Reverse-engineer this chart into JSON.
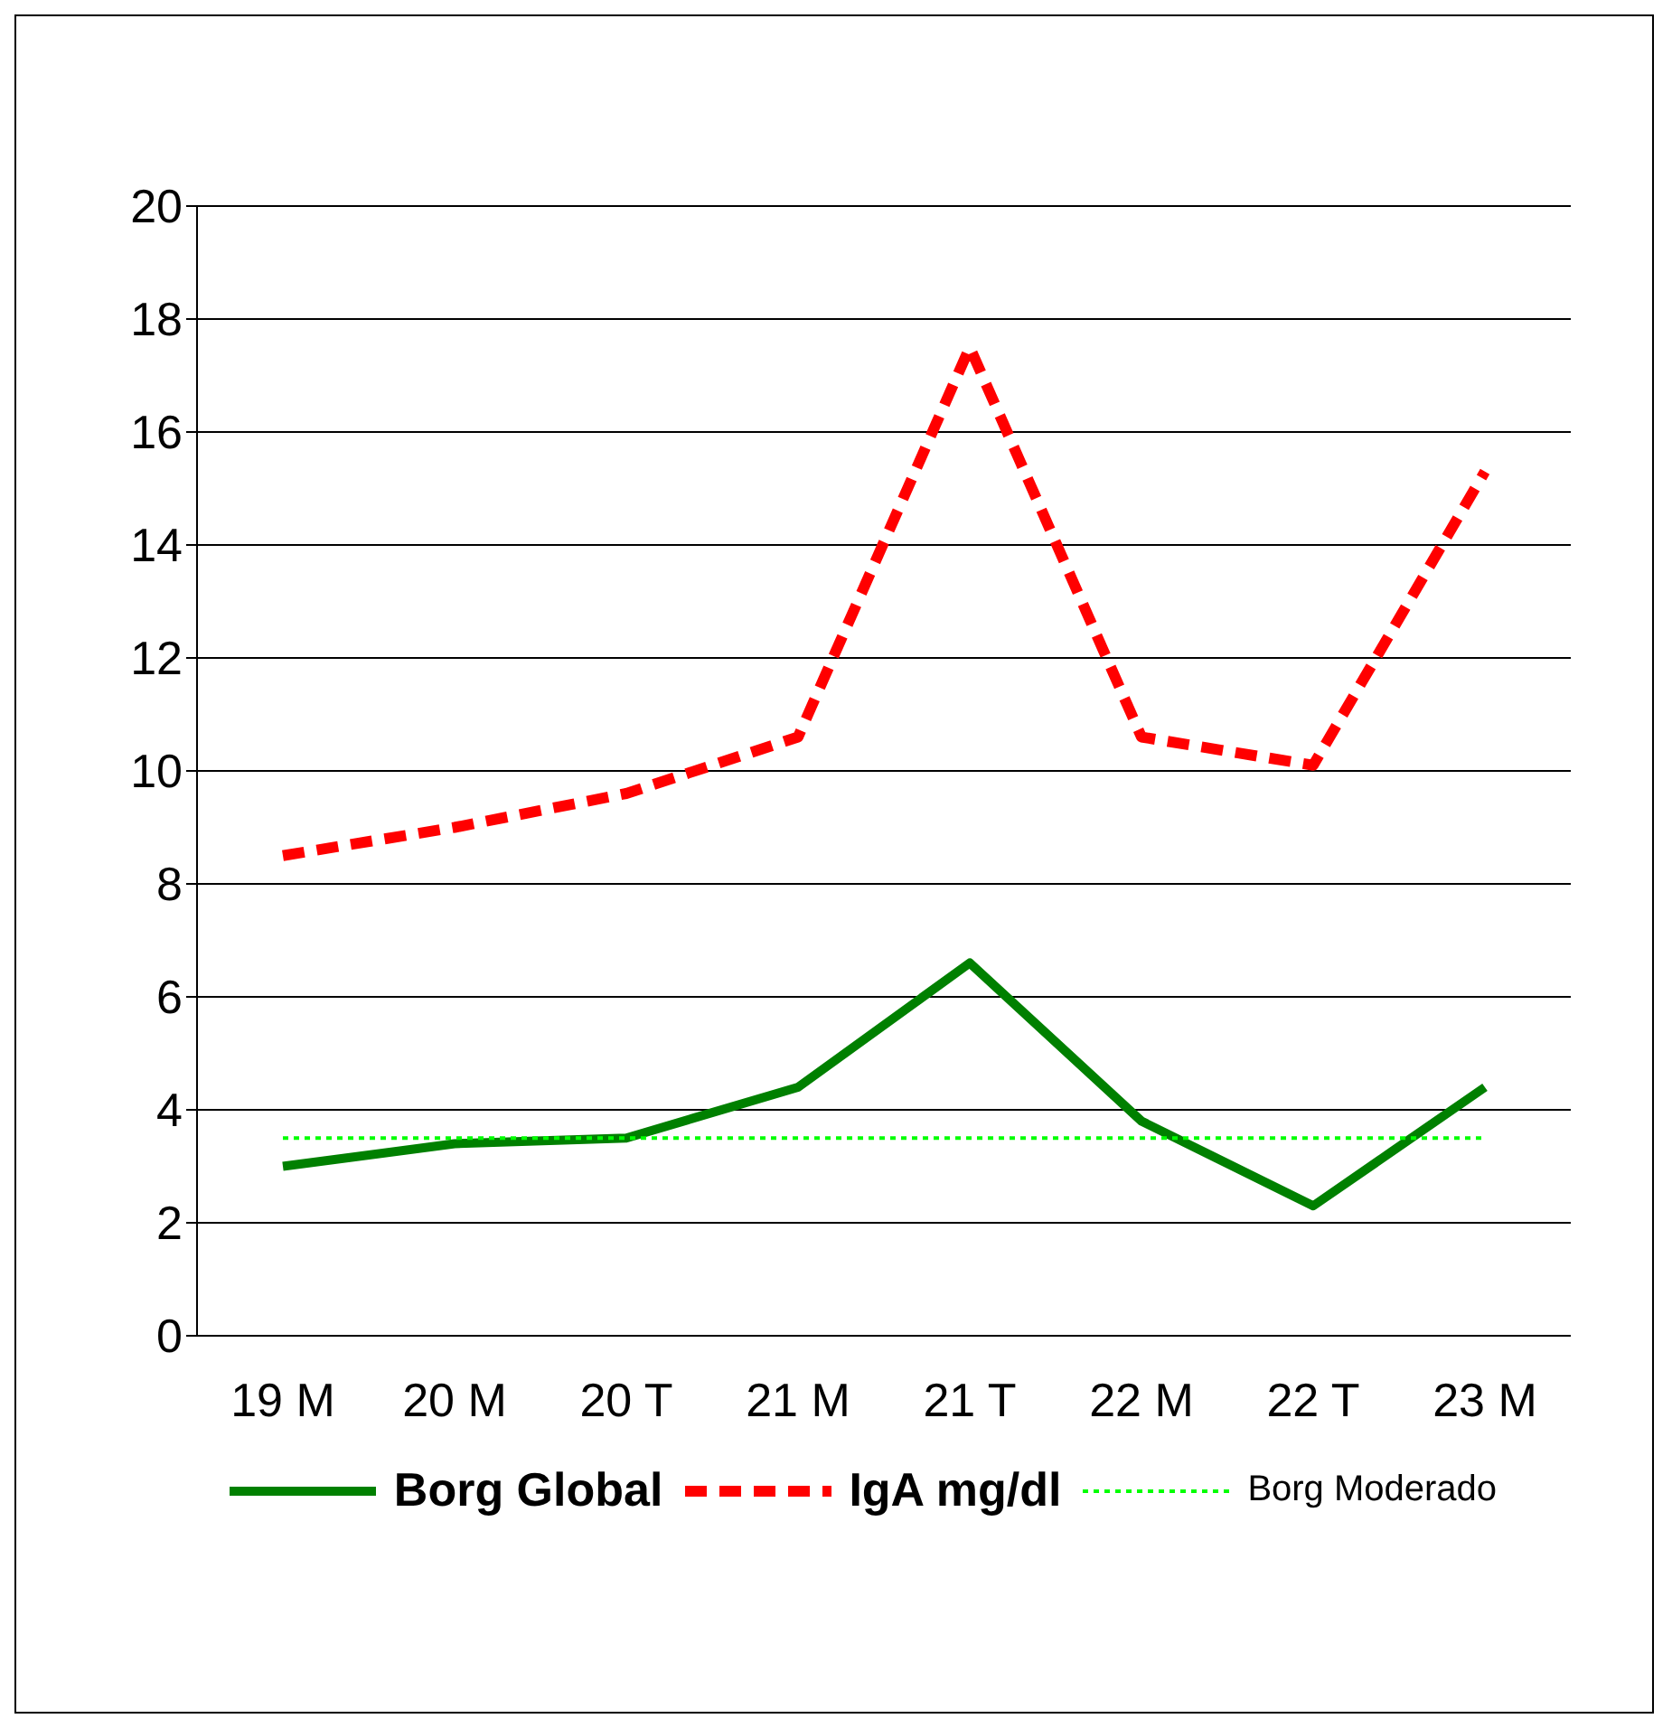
{
  "chart_data": {
    "type": "line",
    "categories": [
      "19 M",
      "20 M",
      "20 T",
      "21 M",
      "21 T",
      "22 M",
      "22 T",
      "23 M"
    ],
    "series": [
      {
        "name": "Borg Global",
        "color": "#008000",
        "line_style": "solid",
        "values": [
          3.0,
          3.4,
          3.5,
          4.4,
          6.6,
          3.8,
          2.3,
          4.4
        ]
      },
      {
        "name": "IgA mg/dl",
        "color": "#ff0000",
        "line_style": "dashed",
        "values": [
          8.5,
          9.0,
          9.6,
          10.6,
          17.5,
          10.6,
          10.1,
          15.3
        ]
      },
      {
        "name": "Borg Moderado",
        "color": "#00ff00",
        "line_style": "dotted",
        "values": [
          3.5,
          3.5,
          3.5,
          3.5,
          3.5,
          3.5,
          3.5,
          3.5
        ]
      }
    ],
    "ylim": [
      0,
      20
    ],
    "yticks": [
      0,
      2,
      4,
      6,
      8,
      10,
      12,
      14,
      16,
      18,
      20
    ],
    "grid": "y",
    "legend": "bottom",
    "marker": "none"
  }
}
